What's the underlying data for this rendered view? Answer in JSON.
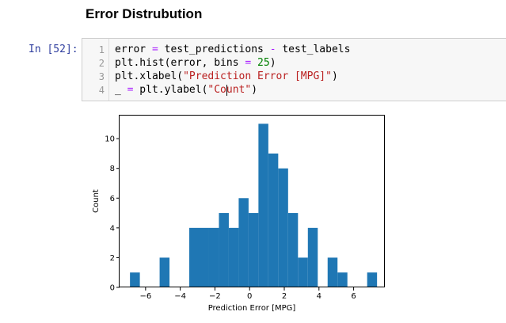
{
  "heading": "Error Distrubution",
  "cell": {
    "prompt": "In [52]:",
    "lines": [
      {
        "no": "1",
        "a": "error ",
        "b": "=",
        "c": " test_predictions ",
        "d": "-",
        "e": " test_labels"
      },
      {
        "no": "2",
        "a": "plt.hist(error, bins ",
        "b": "=",
        "c": " ",
        "d": "25",
        "e": ")"
      },
      {
        "no": "3",
        "a": "plt.xlabel(",
        "b": "\"Prediction Error [MPG]\"",
        "c": ")"
      },
      {
        "no": "4",
        "a": "_ ",
        "b": "=",
        "c": " plt.ylabel(",
        "d": "\"Count\"",
        "e": ")"
      }
    ]
  },
  "chart_data": {
    "type": "bar",
    "xlabel": "Prediction Error [MPG]",
    "ylabel": "Count",
    "xlim": [
      -7.5,
      7.8
    ],
    "ylim": [
      0,
      11.55
    ],
    "xticks": [
      -6,
      -4,
      -2,
      0,
      2,
      4,
      6
    ],
    "xtick_labels": [
      "−6",
      "−4",
      "−2",
      "0",
      "2",
      "4",
      "6"
    ],
    "yticks": [
      0,
      2,
      4,
      6,
      8,
      10
    ],
    "color": "#1f77b4",
    "bins": [
      {
        "x0": -6.9,
        "x1": -6.33,
        "count": 1
      },
      {
        "x0": -6.33,
        "x1": -5.76,
        "count": 0
      },
      {
        "x0": -5.76,
        "x1": -5.19,
        "count": 0
      },
      {
        "x0": -5.19,
        "x1": -4.62,
        "count": 2
      },
      {
        "x0": -4.62,
        "x1": -4.05,
        "count": 0
      },
      {
        "x0": -4.05,
        "x1": -3.48,
        "count": 0
      },
      {
        "x0": -3.48,
        "x1": -2.91,
        "count": 4
      },
      {
        "x0": -2.91,
        "x1": -2.34,
        "count": 4
      },
      {
        "x0": -2.34,
        "x1": -1.77,
        "count": 4
      },
      {
        "x0": -1.77,
        "x1": -1.2,
        "count": 5
      },
      {
        "x0": -1.2,
        "x1": -0.63,
        "count": 4
      },
      {
        "x0": -0.63,
        "x1": -0.06,
        "count": 6
      },
      {
        "x0": -0.06,
        "x1": 0.51,
        "count": 5
      },
      {
        "x0": 0.51,
        "x1": 1.08,
        "count": 11
      },
      {
        "x0": 1.08,
        "x1": 1.65,
        "count": 9
      },
      {
        "x0": 1.65,
        "x1": 2.22,
        "count": 8
      },
      {
        "x0": 2.22,
        "x1": 2.79,
        "count": 5
      },
      {
        "x0": 2.79,
        "x1": 3.36,
        "count": 2
      },
      {
        "x0": 3.36,
        "x1": 3.93,
        "count": 4
      },
      {
        "x0": 3.93,
        "x1": 4.5,
        "count": 0
      },
      {
        "x0": 4.5,
        "x1": 5.07,
        "count": 2
      },
      {
        "x0": 5.07,
        "x1": 5.64,
        "count": 1
      },
      {
        "x0": 5.64,
        "x1": 6.21,
        "count": 0
      },
      {
        "x0": 6.21,
        "x1": 6.78,
        "count": 0
      },
      {
        "x0": 6.78,
        "x1": 7.35,
        "count": 1
      }
    ]
  }
}
